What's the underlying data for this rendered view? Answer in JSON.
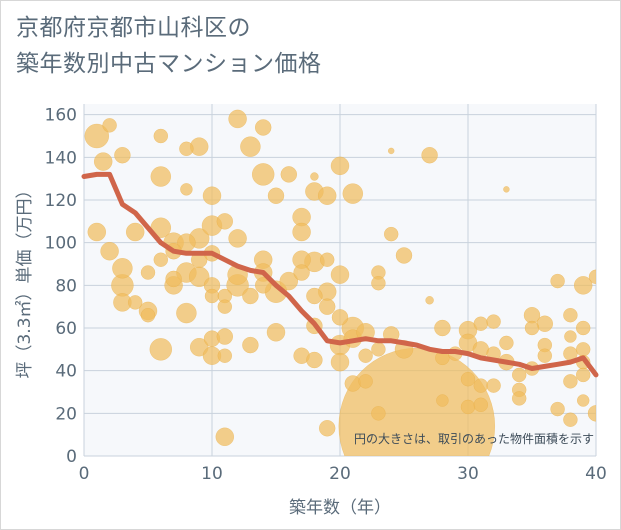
{
  "title": {
    "line1": "京都府京都市山科区の",
    "line2": "築年数別中古マンション価格"
  },
  "colors": {
    "bubble": "#f0bd5e",
    "bubble_stroke": "#e8a93c",
    "line": "#d0654a",
    "grid": "#c8d2dc",
    "plot_bg": "#f6f8fb"
  },
  "chart_data": {
    "type": "scatter",
    "title": "京都府京都市山科区の 築年数別中古マンション価格",
    "xlabel": "築年数（年）",
    "ylabel": "坪（3.3㎡）単価（万円）",
    "xlim": [
      0,
      40
    ],
    "ylim": [
      0,
      165
    ],
    "xticks": [
      0,
      10,
      20,
      30,
      40
    ],
    "yticks": [
      0,
      20,
      40,
      60,
      80,
      100,
      120,
      140,
      160
    ],
    "grid": true,
    "note": "円の大きさは、取引のあった物件面積を示す",
    "points": [
      {
        "x": 1,
        "y": 150,
        "s": 12
      },
      {
        "x": 2,
        "y": 155,
        "s": 7
      },
      {
        "x": 1.5,
        "y": 138,
        "s": 9
      },
      {
        "x": 3,
        "y": 141,
        "s": 8
      },
      {
        "x": 1,
        "y": 105,
        "s": 9
      },
      {
        "x": 2,
        "y": 96,
        "s": 9
      },
      {
        "x": 3,
        "y": 88,
        "s": 10
      },
      {
        "x": 3,
        "y": 80,
        "s": 11
      },
      {
        "x": 3,
        "y": 72,
        "s": 9
      },
      {
        "x": 4,
        "y": 72,
        "s": 7
      },
      {
        "x": 4,
        "y": 105,
        "s": 9
      },
      {
        "x": 5,
        "y": 86,
        "s": 7
      },
      {
        "x": 5,
        "y": 68,
        "s": 9
      },
      {
        "x": 5,
        "y": 66,
        "s": 7
      },
      {
        "x": 6,
        "y": 150,
        "s": 7
      },
      {
        "x": 6,
        "y": 131,
        "s": 10
      },
      {
        "x": 6,
        "y": 107,
        "s": 10
      },
      {
        "x": 6,
        "y": 92,
        "s": 7
      },
      {
        "x": 6,
        "y": 50,
        "s": 11
      },
      {
        "x": 7,
        "y": 100,
        "s": 10
      },
      {
        "x": 7,
        "y": 96,
        "s": 8
      },
      {
        "x": 7,
        "y": 80,
        "s": 9
      },
      {
        "x": 7,
        "y": 83,
        "s": 8
      },
      {
        "x": 8,
        "y": 144,
        "s": 7
      },
      {
        "x": 8,
        "y": 125,
        "s": 6
      },
      {
        "x": 8,
        "y": 100,
        "s": 9
      },
      {
        "x": 8,
        "y": 86,
        "s": 10
      },
      {
        "x": 8,
        "y": 67,
        "s": 10
      },
      {
        "x": 9,
        "y": 145,
        "s": 9
      },
      {
        "x": 9,
        "y": 102,
        "s": 10
      },
      {
        "x": 9,
        "y": 92,
        "s": 8
      },
      {
        "x": 9,
        "y": 84,
        "s": 10
      },
      {
        "x": 9,
        "y": 51,
        "s": 9
      },
      {
        "x": 10,
        "y": 122,
        "s": 9
      },
      {
        "x": 10,
        "y": 108,
        "s": 10
      },
      {
        "x": 10,
        "y": 95,
        "s": 8
      },
      {
        "x": 10,
        "y": 80,
        "s": 8
      },
      {
        "x": 10,
        "y": 75,
        "s": 7
      },
      {
        "x": 10,
        "y": 55,
        "s": 8
      },
      {
        "x": 10,
        "y": 47,
        "s": 9
      },
      {
        "x": 11,
        "y": 110,
        "s": 8
      },
      {
        "x": 11,
        "y": 75,
        "s": 7
      },
      {
        "x": 11,
        "y": 70,
        "s": 7
      },
      {
        "x": 11,
        "y": 56,
        "s": 8
      },
      {
        "x": 11,
        "y": 47,
        "s": 7
      },
      {
        "x": 11,
        "y": 9,
        "s": 9
      },
      {
        "x": 12,
        "y": 158,
        "s": 9
      },
      {
        "x": 12,
        "y": 102,
        "s": 9
      },
      {
        "x": 12,
        "y": 85,
        "s": 10
      },
      {
        "x": 12,
        "y": 80,
        "s": 11
      },
      {
        "x": 13,
        "y": 145,
        "s": 10
      },
      {
        "x": 13,
        "y": 75,
        "s": 8
      },
      {
        "x": 13,
        "y": 52,
        "s": 8
      },
      {
        "x": 14,
        "y": 154,
        "s": 8
      },
      {
        "x": 14,
        "y": 132,
        "s": 11
      },
      {
        "x": 14,
        "y": 92,
        "s": 9
      },
      {
        "x": 14,
        "y": 86,
        "s": 9
      },
      {
        "x": 14,
        "y": 80,
        "s": 8
      },
      {
        "x": 15,
        "y": 122,
        "s": 8
      },
      {
        "x": 15,
        "y": 77,
        "s": 11
      },
      {
        "x": 15,
        "y": 58,
        "s": 9
      },
      {
        "x": 16,
        "y": 132,
        "s": 8
      },
      {
        "x": 16,
        "y": 82,
        "s": 9
      },
      {
        "x": 17,
        "y": 112,
        "s": 9
      },
      {
        "x": 17,
        "y": 105,
        "s": 9
      },
      {
        "x": 17,
        "y": 92,
        "s": 9
      },
      {
        "x": 17,
        "y": 86,
        "s": 8
      },
      {
        "x": 17,
        "y": 47,
        "s": 8
      },
      {
        "x": 18,
        "y": 131,
        "s": 4
      },
      {
        "x": 18,
        "y": 124,
        "s": 9
      },
      {
        "x": 18,
        "y": 91,
        "s": 10
      },
      {
        "x": 18,
        "y": 75,
        "s": 8
      },
      {
        "x": 18,
        "y": 61,
        "s": 8
      },
      {
        "x": 18,
        "y": 45,
        "s": 8
      },
      {
        "x": 19,
        "y": 122,
        "s": 9
      },
      {
        "x": 19,
        "y": 92,
        "s": 7
      },
      {
        "x": 19,
        "y": 77,
        "s": 9
      },
      {
        "x": 19,
        "y": 70,
        "s": 8
      },
      {
        "x": 19,
        "y": 13,
        "s": 8
      },
      {
        "x": 20,
        "y": 136,
        "s": 9
      },
      {
        "x": 20,
        "y": 85,
        "s": 9
      },
      {
        "x": 20,
        "y": 65,
        "s": 8
      },
      {
        "x": 20,
        "y": 52,
        "s": 10
      },
      {
        "x": 20,
        "y": 44,
        "s": 9
      },
      {
        "x": 21,
        "y": 123,
        "s": 10
      },
      {
        "x": 21,
        "y": 60,
        "s": 11
      },
      {
        "x": 21,
        "y": 55,
        "s": 9
      },
      {
        "x": 21,
        "y": 34,
        "s": 8
      },
      {
        "x": 22,
        "y": 58,
        "s": 9
      },
      {
        "x": 22,
        "y": 47,
        "s": 7
      },
      {
        "x": 22,
        "y": 35,
        "s": 7
      },
      {
        "x": 23,
        "y": 86,
        "s": 7
      },
      {
        "x": 23,
        "y": 81,
        "s": 7
      },
      {
        "x": 23,
        "y": 50,
        "s": 7
      },
      {
        "x": 23,
        "y": 20,
        "s": 7
      },
      {
        "x": 24,
        "y": 104,
        "s": 7
      },
      {
        "x": 24,
        "y": 57,
        "s": 8
      },
      {
        "x": 24,
        "y": 143,
        "s": 3
      },
      {
        "x": 25,
        "y": 94,
        "s": 8
      },
      {
        "x": 25,
        "y": 50,
        "s": 9
      },
      {
        "x": 26,
        "y": 14,
        "s": 78
      },
      {
        "x": 27,
        "y": 141,
        "s": 8
      },
      {
        "x": 27,
        "y": 73,
        "s": 4
      },
      {
        "x": 28,
        "y": 60,
        "s": 8
      },
      {
        "x": 28,
        "y": 46,
        "s": 7
      },
      {
        "x": 28,
        "y": 26,
        "s": 6
      },
      {
        "x": 29,
        "y": 48,
        "s": 7
      },
      {
        "x": 30,
        "y": 59,
        "s": 9
      },
      {
        "x": 30,
        "y": 53,
        "s": 9
      },
      {
        "x": 30,
        "y": 36,
        "s": 7
      },
      {
        "x": 30,
        "y": 23,
        "s": 7
      },
      {
        "x": 31,
        "y": 62,
        "s": 7
      },
      {
        "x": 31,
        "y": 50,
        "s": 8
      },
      {
        "x": 31,
        "y": 33,
        "s": 7
      },
      {
        "x": 31,
        "y": 24,
        "s": 7
      },
      {
        "x": 32,
        "y": 63,
        "s": 7
      },
      {
        "x": 32,
        "y": 48,
        "s": 7
      },
      {
        "x": 32,
        "y": 33,
        "s": 7
      },
      {
        "x": 33,
        "y": 125,
        "s": 3
      },
      {
        "x": 33,
        "y": 53,
        "s": 7
      },
      {
        "x": 33,
        "y": 44,
        "s": 8
      },
      {
        "x": 34,
        "y": 38,
        "s": 7
      },
      {
        "x": 34,
        "y": 31,
        "s": 7
      },
      {
        "x": 34,
        "y": 27,
        "s": 7
      },
      {
        "x": 35,
        "y": 66,
        "s": 8
      },
      {
        "x": 35,
        "y": 60,
        "s": 7
      },
      {
        "x": 35,
        "y": 41,
        "s": 7
      },
      {
        "x": 36,
        "y": 62,
        "s": 8
      },
      {
        "x": 36,
        "y": 52,
        "s": 7
      },
      {
        "x": 36,
        "y": 47,
        "s": 7
      },
      {
        "x": 37,
        "y": 82,
        "s": 7
      },
      {
        "x": 37,
        "y": 22,
        "s": 7
      },
      {
        "x": 38,
        "y": 66,
        "s": 7
      },
      {
        "x": 38,
        "y": 56,
        "s": 6
      },
      {
        "x": 38,
        "y": 48,
        "s": 7
      },
      {
        "x": 38,
        "y": 35,
        "s": 7
      },
      {
        "x": 38,
        "y": 17,
        "s": 7
      },
      {
        "x": 39,
        "y": 80,
        "s": 9
      },
      {
        "x": 39,
        "y": 60,
        "s": 7
      },
      {
        "x": 39,
        "y": 50,
        "s": 7
      },
      {
        "x": 39,
        "y": 44,
        "s": 7
      },
      {
        "x": 39,
        "y": 38,
        "s": 7
      },
      {
        "x": 39,
        "y": 26,
        "s": 6
      },
      {
        "x": 40,
        "y": 84,
        "s": 7
      },
      {
        "x": 40,
        "y": 20,
        "s": 8
      }
    ],
    "trend": {
      "x": [
        0,
        1,
        2,
        3,
        4,
        5,
        6,
        7,
        8,
        9,
        10,
        11,
        12,
        13,
        14,
        15,
        16,
        17,
        18,
        19,
        20,
        21,
        22,
        23,
        24,
        25,
        26,
        27,
        28,
        29,
        30,
        31,
        32,
        33,
        34,
        35,
        36,
        37,
        38,
        39,
        40
      ],
      "y": [
        131,
        132,
        132,
        118,
        114,
        107,
        100,
        96,
        95,
        95,
        95,
        92,
        89,
        87,
        86,
        80,
        75,
        68,
        62,
        54,
        53,
        54,
        55,
        54,
        54,
        53,
        52,
        50,
        49,
        49,
        48,
        46,
        45,
        44,
        43,
        41,
        42,
        43,
        44,
        46,
        38
      ]
    }
  }
}
